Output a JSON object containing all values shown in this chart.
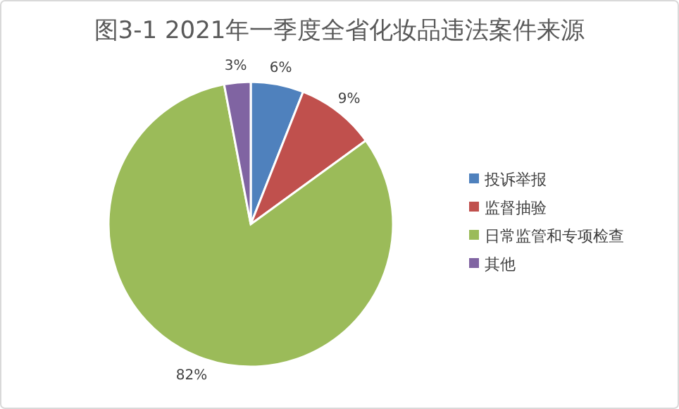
{
  "chart_data": {
    "type": "pie",
    "title": "图3-1  2021年一季度全省化妆品违法案件来源",
    "categories": [
      "投诉举报",
      "监督抽验",
      "日常监管和专项检查",
      "其他"
    ],
    "values": [
      6,
      9,
      82,
      3
    ],
    "colors": [
      "#4f81bd",
      "#c0504d",
      "#9bbb59",
      "#8064a2"
    ],
    "value_labels": [
      "6%",
      "9%",
      "82%",
      "3%"
    ],
    "legend": "right"
  }
}
